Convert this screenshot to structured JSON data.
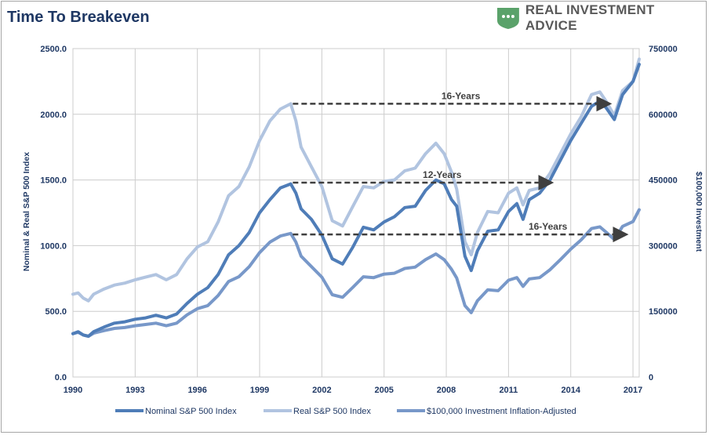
{
  "header": {
    "title": "Time To Breakeven",
    "brand": "REAL INVESTMENT ADVICE"
  },
  "colors": {
    "nominal": "#4f7db8",
    "real": "#b1c4e0",
    "investment": "#7898c9",
    "grid": "#cccccc",
    "text": "#1f3864",
    "arrow": "#3f3f3f",
    "brand_green": "#5aa26a"
  },
  "chart_data": {
    "type": "line",
    "xlabel": "",
    "ylabel_left": "Nominal & Real S&P 500 Index",
    "ylabel_right": "$100,000 Investment",
    "xlim": [
      1990,
      2017.3
    ],
    "ylim_left": [
      0,
      2500
    ],
    "ylim_right": [
      0,
      750000
    ],
    "x_ticks": [
      1990,
      1993,
      1996,
      1999,
      2002,
      2005,
      2008,
      2011,
      2014,
      2017
    ],
    "y_ticks_left": [
      "0.0",
      "500.0",
      "1000.0",
      "1500.0",
      "2000.0",
      "2500.0"
    ],
    "y_ticks_right": [
      "0",
      "150000",
      "300000",
      "450000",
      "600000",
      "750000"
    ],
    "grid": true,
    "legend_position": "bottom",
    "series": [
      {
        "name": "Nominal S&P 500 Index",
        "axis": "left",
        "x": [
          1990,
          1990.25,
          1990.5,
          1990.75,
          1991,
          1991.5,
          1992,
          1992.5,
          1993,
          1993.5,
          1994,
          1994.5,
          1995,
          1995.5,
          1996,
          1996.5,
          1997,
          1997.5,
          1998,
          1998.5,
          1999,
          1999.5,
          2000,
          2000.5,
          2000.75,
          2001,
          2001.5,
          2002,
          2002.5,
          2003,
          2003.5,
          2004,
          2004.5,
          2005,
          2005.5,
          2006,
          2006.5,
          2007,
          2007.5,
          2007.9,
          2008.25,
          2008.5,
          2008.9,
          2009.2,
          2009.5,
          2010,
          2010.5,
          2011,
          2011.4,
          2011.7,
          2012,
          2012.5,
          2013,
          2013.5,
          2014,
          2014.5,
          2015,
          2015.4,
          2015.7,
          2016.1,
          2016.5,
          2017,
          2017.3
        ],
        "y": [
          330,
          345,
          320,
          310,
          345,
          380,
          410,
          420,
          440,
          450,
          470,
          450,
          480,
          560,
          630,
          680,
          780,
          930,
          1000,
          1100,
          1250,
          1350,
          1440,
          1470,
          1400,
          1280,
          1200,
          1080,
          900,
          860,
          990,
          1140,
          1120,
          1180,
          1220,
          1290,
          1300,
          1420,
          1500,
          1470,
          1350,
          1300,
          920,
          810,
          960,
          1110,
          1120,
          1260,
          1320,
          1200,
          1350,
          1400,
          1500,
          1650,
          1800,
          1930,
          2060,
          2100,
          2050,
          1960,
          2150,
          2250,
          2380
        ]
      },
      {
        "name": "Real S&P 500 Index",
        "axis": "left",
        "x": [
          1990,
          1990.25,
          1990.5,
          1990.75,
          1991,
          1991.5,
          1992,
          1992.5,
          1993,
          1993.5,
          1994,
          1994.5,
          1995,
          1995.5,
          1996,
          1996.5,
          1997,
          1997.5,
          1998,
          1998.5,
          1999,
          1999.5,
          2000,
          2000.5,
          2000.75,
          2001,
          2001.5,
          2002,
          2002.5,
          2003,
          2003.5,
          2004,
          2004.5,
          2005,
          2005.5,
          2006,
          2006.5,
          2007,
          2007.5,
          2007.9,
          2008.25,
          2008.5,
          2008.9,
          2009.2,
          2009.5,
          2010,
          2010.5,
          2011,
          2011.4,
          2011.7,
          2012,
          2012.5,
          2013,
          2013.5,
          2014,
          2014.5,
          2015,
          2015.4,
          2015.7,
          2016.1,
          2016.5,
          2017,
          2017.3
        ],
        "y": [
          630,
          640,
          600,
          580,
          630,
          670,
          700,
          715,
          740,
          760,
          780,
          740,
          780,
          900,
          990,
          1030,
          1180,
          1380,
          1450,
          1600,
          1800,
          1950,
          2040,
          2080,
          1950,
          1750,
          1600,
          1450,
          1190,
          1150,
          1300,
          1450,
          1440,
          1490,
          1500,
          1570,
          1590,
          1700,
          1780,
          1700,
          1560,
          1430,
          1030,
          930,
          1100,
          1260,
          1250,
          1400,
          1440,
          1310,
          1420,
          1440,
          1550,
          1700,
          1850,
          1980,
          2150,
          2170,
          2100,
          1990,
          2180,
          2250,
          2420
        ]
      },
      {
        "name": "$100,000 Investment Inflation-Adjusted",
        "axis": "right",
        "x": [
          1990,
          1990.25,
          1990.5,
          1990.75,
          1991,
          1991.5,
          1992,
          1992.5,
          1993,
          1993.5,
          1994,
          1994.5,
          1995,
          1995.5,
          1996,
          1996.5,
          1997,
          1997.5,
          1998,
          1998.5,
          1999,
          1999.5,
          2000,
          2000.5,
          2000.75,
          2001,
          2001.5,
          2002,
          2002.5,
          2003,
          2003.5,
          2004,
          2004.5,
          2005,
          2005.5,
          2006,
          2006.5,
          2007,
          2007.5,
          2007.9,
          2008.25,
          2008.5,
          2008.9,
          2009.2,
          2009.5,
          2010,
          2010.5,
          2011,
          2011.4,
          2011.7,
          2012,
          2012.5,
          2013,
          2013.5,
          2014,
          2014.5,
          2015,
          2015.4,
          2015.7,
          2016.1,
          2016.5,
          2017,
          2017.3
        ],
        "y": [
          99000,
          102000,
          96000,
          93000,
          100000,
          106000,
          111000,
          113000,
          117000,
          120000,
          123000,
          117000,
          123000,
          142000,
          156000,
          163000,
          186000,
          218000,
          229000,
          252000,
          284000,
          308000,
          322000,
          328000,
          308000,
          276000,
          252000,
          228000,
          188000,
          182000,
          205000,
          229000,
          227000,
          235000,
          237000,
          248000,
          251000,
          268000,
          281000,
          268000,
          246000,
          226000,
          163000,
          147000,
          174000,
          199000,
          197000,
          221000,
          227000,
          207000,
          224000,
          227000,
          245000,
          268000,
          292000,
          313000,
          339000,
          343000,
          331000,
          314000,
          344000,
          355000,
          382000
        ]
      }
    ],
    "annotations": [
      {
        "label": "16-Years",
        "from": [
          2000.6,
          2080
        ],
        "to": [
          2015.8,
          2080
        ],
        "axis": "left",
        "label_x": 2008.7
      },
      {
        "label": "12-Years",
        "from": [
          2000.6,
          1480
        ],
        "to": [
          2013.0,
          1480
        ],
        "axis": "left",
        "label_x": 2007.8
      },
      {
        "label": "16-Years",
        "from": [
          2000.6,
          1085
        ],
        "to": [
          2016.6,
          1085
        ],
        "axis": "left",
        "label_x": 2012.9
      }
    ]
  }
}
